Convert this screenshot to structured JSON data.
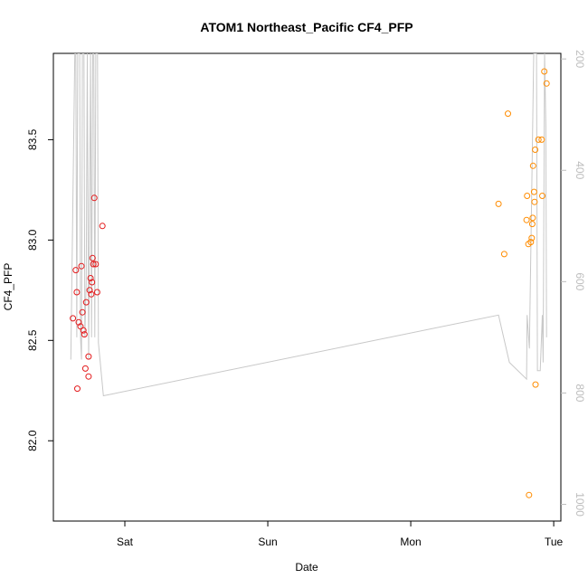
{
  "chart_data": {
    "type": "scatter",
    "title": "ATOM1 Northeast_Pacific CF4_PFP",
    "xlabel": "Date",
    "ylabel": "CF4_PFP",
    "x_ticks": [
      "Sat",
      "Sun",
      "Mon",
      "Tue"
    ],
    "x_tick_days": [
      0,
      1,
      2,
      3
    ],
    "xlim_days": [
      -0.5,
      3.05
    ],
    "ylim": [
      81.6,
      83.93
    ],
    "y_ticks": [
      82.0,
      82.5,
      83.0,
      83.5
    ],
    "y_tick_labels": [
      "82.0",
      "82.5",
      "83.0",
      "83.5"
    ],
    "y2_ticks": [
      200,
      400,
      600,
      800,
      1000
    ],
    "y2_tick_labels": [
      "200",
      "400",
      "600",
      "800",
      "1000"
    ],
    "y2lim": [
      1030,
      190
    ],
    "colors": {
      "series1": "#e31a1c",
      "series2": "#ff8c00",
      "altitude": "#c8c8c8"
    },
    "series": [
      {
        "points": [
          {
            "x": -0.363,
            "y": 82.61
          },
          {
            "x": -0.343,
            "y": 82.85
          },
          {
            "x": -0.336,
            "y": 82.74
          },
          {
            "x": -0.332,
            "y": 82.26
          },
          {
            "x": -0.323,
            "y": 82.59
          },
          {
            "x": -0.31,
            "y": 82.57
          },
          {
            "x": -0.304,
            "y": 82.87
          },
          {
            "x": -0.297,
            "y": 82.64
          },
          {
            "x": -0.29,
            "y": 82.55
          },
          {
            "x": -0.283,
            "y": 82.53
          },
          {
            "x": -0.276,
            "y": 82.36
          },
          {
            "x": -0.27,
            "y": 82.69
          },
          {
            "x": -0.254,
            "y": 82.32
          },
          {
            "x": -0.254,
            "y": 82.42
          },
          {
            "x": -0.246,
            "y": 82.75
          },
          {
            "x": -0.24,
            "y": 82.81
          },
          {
            "x": -0.235,
            "y": 82.73
          },
          {
            "x": -0.23,
            "y": 82.79
          },
          {
            "x": -0.226,
            "y": 82.91
          },
          {
            "x": -0.22,
            "y": 82.88
          },
          {
            "x": -0.214,
            "y": 83.21
          },
          {
            "x": -0.204,
            "y": 82.88
          },
          {
            "x": -0.194,
            "y": 82.74
          },
          {
            "x": -0.157,
            "y": 83.07
          }
        ]
      },
      {
        "points": [
          {
            "x": 2.614,
            "y": 83.18
          },
          {
            "x": 2.654,
            "y": 82.93
          },
          {
            "x": 2.68,
            "y": 83.63
          },
          {
            "x": 2.81,
            "y": 83.1
          },
          {
            "x": 2.814,
            "y": 83.22
          },
          {
            "x": 2.823,
            "y": 82.98
          },
          {
            "x": 2.827,
            "y": 81.73
          },
          {
            "x": 2.84,
            "y": 82.99
          },
          {
            "x": 2.846,
            "y": 83.01
          },
          {
            "x": 2.85,
            "y": 83.08
          },
          {
            "x": 2.853,
            "y": 83.11
          },
          {
            "x": 2.856,
            "y": 83.37
          },
          {
            "x": 2.863,
            "y": 83.24
          },
          {
            "x": 2.866,
            "y": 83.19
          },
          {
            "x": 2.87,
            "y": 83.45
          },
          {
            "x": 2.873,
            "y": 82.28
          },
          {
            "x": 2.893,
            "y": 83.5
          },
          {
            "x": 2.916,
            "y": 83.5
          },
          {
            "x": 2.92,
            "y": 83.22
          },
          {
            "x": 2.934,
            "y": 83.84
          },
          {
            "x": 2.95,
            "y": 83.78
          }
        ]
      }
    ],
    "altitude_line": [
      {
        "x": -0.378,
        "y2": 740
      },
      {
        "x": -0.35,
        "y2": 190
      },
      {
        "x": -0.343,
        "y2": 190
      },
      {
        "x": -0.336,
        "y2": 700
      },
      {
        "x": -0.33,
        "y2": 190
      },
      {
        "x": -0.316,
        "y2": 190
      },
      {
        "x": -0.31,
        "y2": 700
      },
      {
        "x": -0.303,
        "y2": 740
      },
      {
        "x": -0.297,
        "y2": 190
      },
      {
        "x": -0.286,
        "y2": 190
      },
      {
        "x": -0.28,
        "y2": 700
      },
      {
        "x": -0.27,
        "y2": 600
      },
      {
        "x": -0.263,
        "y2": 190
      },
      {
        "x": -0.253,
        "y2": 740
      },
      {
        "x": -0.24,
        "y2": 190
      },
      {
        "x": -0.233,
        "y2": 700
      },
      {
        "x": -0.225,
        "y2": 190
      },
      {
        "x": -0.217,
        "y2": 190
      },
      {
        "x": -0.21,
        "y2": 700
      },
      {
        "x": -0.203,
        "y2": 190
      },
      {
        "x": -0.191,
        "y2": 190
      },
      {
        "x": -0.185,
        "y2": 710
      },
      {
        "x": -0.15,
        "y2": 805
      },
      {
        "x": 2.614,
        "y2": 660
      },
      {
        "x": 2.69,
        "y2": 745
      },
      {
        "x": 2.81,
        "y2": 775
      },
      {
        "x": 2.814,
        "y2": 660
      },
      {
        "x": 2.83,
        "y2": 720
      },
      {
        "x": 2.845,
        "y2": 460
      },
      {
        "x": 2.86,
        "y2": 190
      },
      {
        "x": 2.88,
        "y2": 190
      },
      {
        "x": 2.886,
        "y2": 760
      },
      {
        "x": 2.906,
        "y2": 760
      },
      {
        "x": 2.92,
        "y2": 660
      },
      {
        "x": 2.926,
        "y2": 745
      },
      {
        "x": 2.936,
        "y2": 190
      },
      {
        "x": 2.945,
        "y2": 320
      },
      {
        "x": 2.95,
        "y2": 700
      }
    ]
  }
}
